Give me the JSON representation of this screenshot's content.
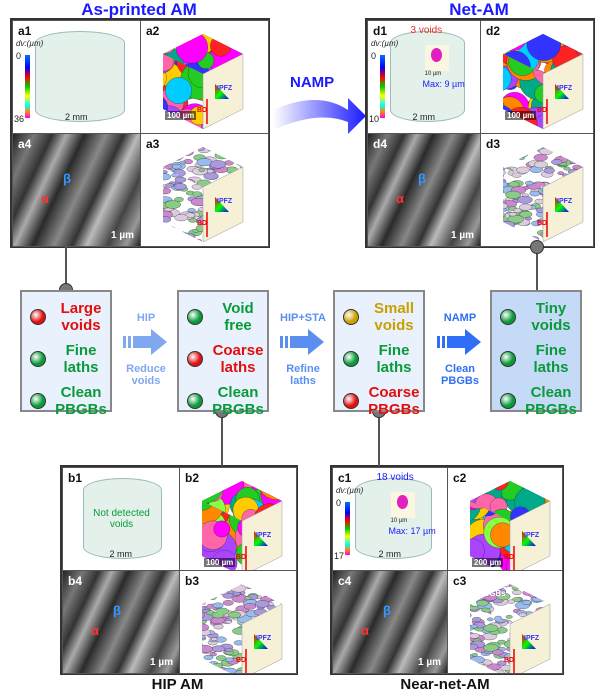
{
  "titles": {
    "as_printed": "As-printed AM",
    "net_am": "Net-AM",
    "hip_am": "HIP AM",
    "near_net": "Near-net-AM"
  },
  "namp_arrow": "NAMP",
  "panels": {
    "a": {
      "labels": [
        "a1",
        "a2",
        "a3",
        "a4"
      ],
      "colorbar_title": "dv:(µm)",
      "cb_min": "0",
      "cb_max": "36",
      "dim": "2 mm",
      "scale_cube": "100 µm",
      "scale_sem": "1 µm",
      "alpha": "α",
      "beta": "β",
      "ipf": "IPFZ",
      "bd": "BD"
    },
    "d": {
      "labels": [
        "d1",
        "d2",
        "d3",
        "d4"
      ],
      "colorbar_title": "dv:(µm)",
      "cb_min": "0",
      "cb_max": "10",
      "dim": "2 mm",
      "voids": "3 voids",
      "inset": "10 µm",
      "max": "Max: 9 µm",
      "scale_cube": "100 µm",
      "scale_sem": "1 µm",
      "alpha": "α",
      "beta": "β",
      "ipf": "IPFZ",
      "bd": "BD"
    },
    "b": {
      "labels": [
        "b1",
        "b2",
        "b3",
        "b4"
      ],
      "note": "Not detected voids",
      "dim": "2 mm",
      "scale_cube": "100 µm",
      "scale_sem": "1 µm",
      "alpha": "α",
      "beta": "β",
      "ipf": "IPFZ",
      "bd": "BD"
    },
    "c": {
      "labels": [
        "c1",
        "c2",
        "c3",
        "c4"
      ],
      "colorbar_title": "dv:(µm)",
      "cb_min": "0",
      "cb_max": "17",
      "dim": "2 mm",
      "voids": "18 voids",
      "inset": "10 µm",
      "max": "Max: 17 µm",
      "scale_cube": "200 µm",
      "scale_sem": "1 µm",
      "alpha": "α",
      "beta": "β",
      "pbgbs": "PBGBs",
      "ipf": "IPFZ",
      "bd": "BD"
    }
  },
  "colors": {
    "red": "#e01010",
    "green": "#0a9a3a",
    "yellow": "#c9a000",
    "blue": "#1a1aff"
  },
  "boxes": [
    {
      "items": [
        {
          "text": "Large voids",
          "status": "red"
        },
        {
          "text": "Fine laths",
          "status": "green"
        },
        {
          "text": "Clean PBGBs",
          "status": "green"
        }
      ]
    },
    {
      "items": [
        {
          "text": "Void free",
          "status": "green"
        },
        {
          "text": "Coarse laths",
          "status": "red"
        },
        {
          "text": "Clean PBGBs",
          "status": "green"
        }
      ]
    },
    {
      "items": [
        {
          "text": "Small voids",
          "status": "yellow"
        },
        {
          "text": "Fine laths",
          "status": "green"
        },
        {
          "text": "Coarse PBGBs",
          "status": "red"
        }
      ]
    },
    {
      "items": [
        {
          "text": "Tiny voids",
          "status": "green"
        },
        {
          "text": "Fine laths",
          "status": "green"
        },
        {
          "text": "Clean PBGBs",
          "status": "green"
        }
      ]
    }
  ],
  "steps": [
    {
      "process": "HIP",
      "effect": "Reduce voids",
      "color": "#7fa8ee"
    },
    {
      "process": "HIP+STA",
      "effect": "Refine laths",
      "color": "#5a8ff0"
    },
    {
      "process": "NAMP",
      "effect": "Clean PBGBs",
      "color": "#2f6ef5"
    }
  ]
}
